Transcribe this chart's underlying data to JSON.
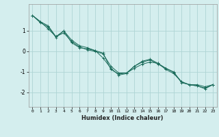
{
  "xlabel": "Humidex (Indice chaleur)",
  "bg_color": "#d4eeee",
  "grid_color": "#aed4d4",
  "line_color": "#1a6b5a",
  "xlim": [
    -0.5,
    23.5
  ],
  "ylim": [
    -2.7,
    2.3
  ],
  "yticks": [
    -2,
    -1,
    0,
    1
  ],
  "xticks": [
    0,
    1,
    2,
    3,
    4,
    5,
    6,
    7,
    8,
    9,
    10,
    11,
    12,
    13,
    14,
    15,
    16,
    17,
    18,
    19,
    20,
    21,
    22,
    23
  ],
  "series1_x": [
    0,
    1,
    2,
    3,
    4,
    5,
    6,
    7,
    8,
    9,
    10,
    11,
    12,
    13,
    14,
    15,
    16,
    17,
    18,
    19,
    20,
    21,
    22,
    23
  ],
  "series1_y": [
    1.75,
    1.45,
    1.25,
    0.72,
    1.0,
    0.55,
    0.28,
    0.18,
    0.04,
    -0.08,
    -0.88,
    -1.1,
    -1.05,
    -0.72,
    -0.52,
    -0.42,
    -0.62,
    -0.82,
    -1.0,
    -1.52,
    -1.62,
    -1.62,
    -1.72,
    -1.62
  ],
  "series2_x": [
    0,
    1,
    2,
    3,
    4,
    5,
    6,
    7,
    8,
    9,
    10,
    11,
    12,
    13,
    14,
    15,
    16,
    17,
    18,
    19,
    20,
    21,
    22,
    23
  ],
  "series2_y": [
    1.75,
    1.45,
    1.1,
    0.72,
    0.9,
    0.48,
    0.22,
    0.08,
    0.0,
    -0.12,
    -0.72,
    -1.05,
    -1.05,
    -0.82,
    -0.62,
    -0.52,
    -0.58,
    -0.82,
    -1.02,
    -1.48,
    -1.62,
    -1.68,
    -1.78,
    -1.62
  ],
  "series3_x": [
    0,
    1,
    2,
    3,
    4,
    5,
    6,
    7,
    8,
    9,
    10,
    11,
    12,
    13,
    14,
    15,
    16,
    17,
    18,
    19,
    20,
    21,
    22,
    23
  ],
  "series3_y": [
    1.75,
    1.4,
    1.2,
    0.68,
    1.0,
    0.42,
    0.18,
    0.12,
    0.04,
    -0.32,
    -0.82,
    -1.15,
    -1.08,
    -0.72,
    -0.48,
    -0.38,
    -0.58,
    -0.88,
    -1.08,
    -1.48,
    -1.62,
    -1.68,
    -1.82,
    -1.62
  ]
}
